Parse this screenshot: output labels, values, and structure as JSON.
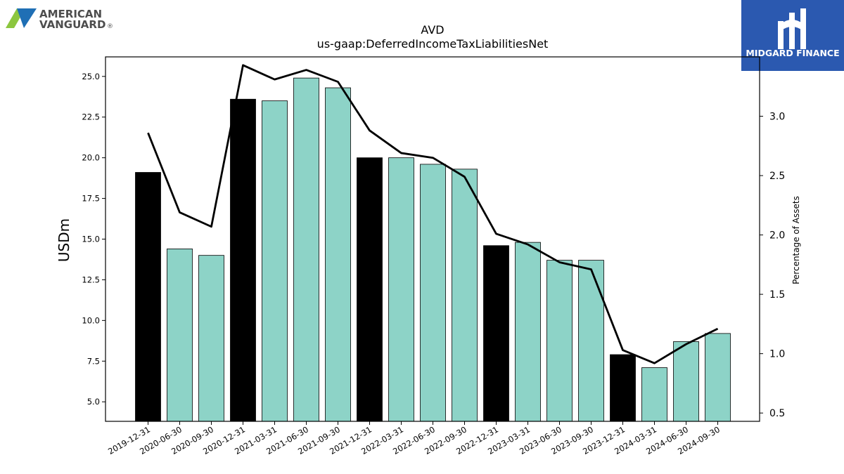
{
  "logo_left": {
    "line1": "AMERICAN",
    "line2": "VANGUARD",
    "mark": "®"
  },
  "logo_right": {
    "name": "MIDGARD FINANCE"
  },
  "chart_data": {
    "type": "bar",
    "title": "AVD",
    "subtitle": "us-gaap:DeferredIncomeTaxLiabilitiesNet",
    "ylabel": "USDm",
    "y2label": "Percentage of Assets",
    "categories": [
      "2019-12-31",
      "2020-06-30",
      "2020-09-30",
      "2020-12-31",
      "2021-03-31",
      "2021-06-30",
      "2021-09-30",
      "2021-12-31",
      "2022-03-31",
      "2022-06-30",
      "2022-09-30",
      "2022-12-31",
      "2023-03-31",
      "2023-06-30",
      "2023-09-30",
      "2023-12-31",
      "2024-03-31",
      "2024-06-30",
      "2024-09-30"
    ],
    "series": [
      {
        "type": "bar",
        "axis": "left",
        "values": [
          19.1,
          14.4,
          14.0,
          23.6,
          23.5,
          24.9,
          24.3,
          20.0,
          20.0,
          19.6,
          19.3,
          14.6,
          14.8,
          13.7,
          13.7,
          7.9,
          7.1,
          8.7,
          9.2
        ],
        "annual": [
          true,
          false,
          false,
          true,
          false,
          false,
          false,
          true,
          false,
          false,
          false,
          true,
          false,
          false,
          false,
          true,
          false,
          false,
          false
        ]
      },
      {
        "type": "line",
        "axis": "right",
        "values": [
          2.86,
          2.19,
          2.07,
          3.43,
          3.31,
          3.39,
          3.29,
          2.88,
          2.69,
          2.65,
          2.49,
          2.01,
          1.92,
          1.77,
          1.71,
          1.03,
          0.92,
          1.08,
          1.21
        ]
      }
    ],
    "yticks": [
      "5.0",
      "7.5",
      "10.0",
      "12.5",
      "15.0",
      "17.5",
      "20.0",
      "22.5",
      "25.0"
    ],
    "y2ticks": [
      "0.5",
      "1.0",
      "1.5",
      "2.0",
      "2.5",
      "3.0"
    ],
    "ylim": [
      3.8,
      26.2
    ],
    "y2lim": [
      0.43,
      3.5
    ],
    "colors": {
      "annual_bar": "#000000",
      "quarter_bar": "#8dd3c7",
      "line": "#000000",
      "brand_blue": "#2b59b0",
      "logo_green": "#8cc63f",
      "logo_blue": "#1f6fb5",
      "logo_text": "#4d4d4d"
    }
  }
}
